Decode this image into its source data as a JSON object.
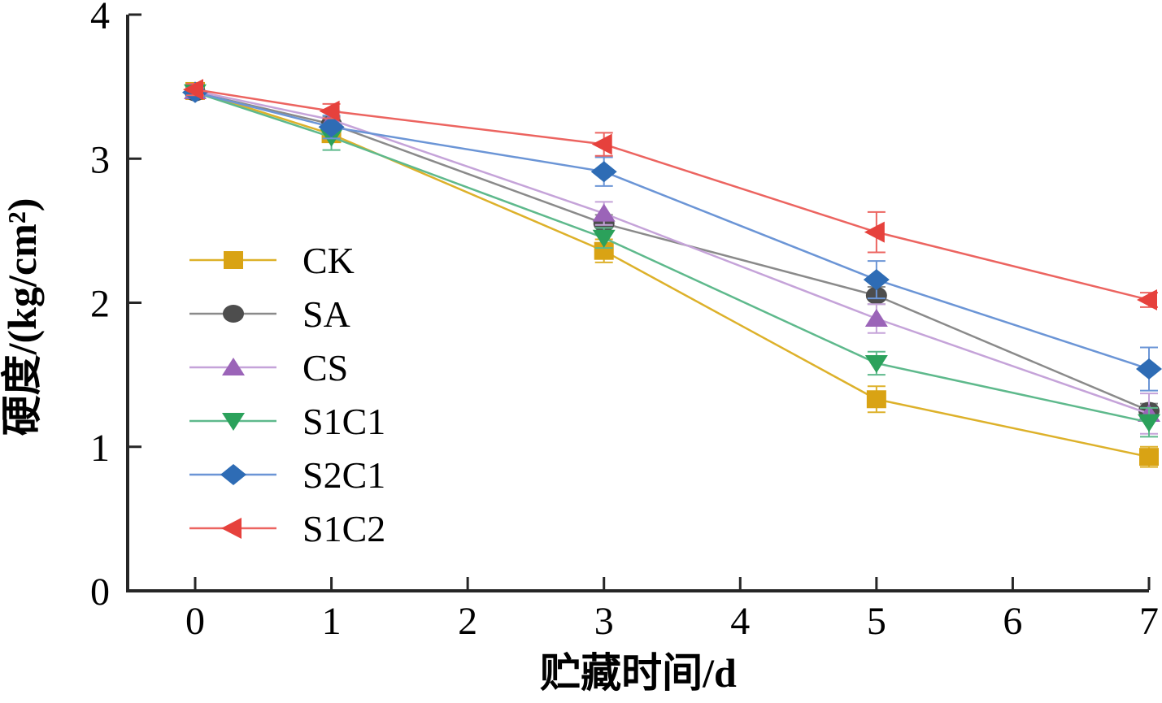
{
  "page": {
    "background": "#ffffff"
  },
  "chart_data": {
    "type": "line",
    "title": "",
    "xlabel": "贮藏时间/d",
    "ylabel": "硬度/(kg/cm²)",
    "xlim": [
      0,
      7
    ],
    "ylim": [
      0,
      4
    ],
    "xticks": [
      "0",
      "1",
      "2",
      "3",
      "4",
      "5",
      "6",
      "7"
    ],
    "yticks": [
      "0",
      "1",
      "2",
      "3",
      "4"
    ],
    "grid": false,
    "legend_position": "inside-center-left",
    "axis_color": "#262626",
    "x_values": [
      0,
      1,
      3,
      5,
      7
    ],
    "series": [
      {
        "name": "CK",
        "marker": "square",
        "marker_color": "#d9a314",
        "line_color": "#ddb12a",
        "values": [
          3.47,
          3.17,
          2.36,
          1.33,
          0.93
        ],
        "errors": [
          0.03,
          0.05,
          0.08,
          0.09,
          0.07
        ]
      },
      {
        "name": "SA",
        "marker": "circle",
        "marker_color": "#4d4d4d",
        "line_color": "#8a8a8a",
        "values": [
          3.46,
          3.24,
          2.55,
          2.05,
          1.25
        ],
        "errors": [
          0.03,
          0.05,
          0.06,
          0.06,
          0.05
        ]
      },
      {
        "name": "CS",
        "marker": "triangle-up",
        "marker_color": "#9b64b8",
        "line_color": "#c5a3d9",
        "values": [
          3.47,
          3.27,
          2.62,
          1.89,
          1.23
        ],
        "errors": [
          0.03,
          0.06,
          0.08,
          0.1,
          0.14
        ]
      },
      {
        "name": "S1C1",
        "marker": "triangle-down",
        "marker_color": "#2ba15b",
        "line_color": "#5eb98c",
        "values": [
          3.46,
          3.15,
          2.45,
          1.58,
          1.17
        ],
        "errors": [
          0.03,
          0.09,
          0.07,
          0.08,
          0.1
        ]
      },
      {
        "name": "S2C1",
        "marker": "diamond",
        "marker_color": "#2e6cb5",
        "line_color": "#6b95d6",
        "values": [
          3.46,
          3.22,
          2.91,
          2.16,
          1.54
        ],
        "errors": [
          0.03,
          0.08,
          0.1,
          0.13,
          0.15
        ]
      },
      {
        "name": "S1C2",
        "marker": "triangle-left",
        "marker_color": "#e6413c",
        "line_color": "#ec6460",
        "values": [
          3.48,
          3.33,
          3.1,
          2.49,
          2.02
        ],
        "errors": [
          0.04,
          0.05,
          0.08,
          0.14,
          0.05
        ]
      }
    ]
  }
}
